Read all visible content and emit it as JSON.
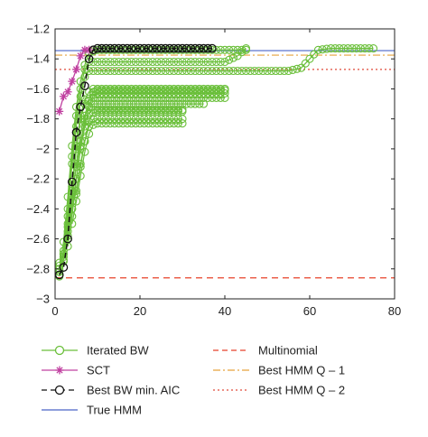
{
  "chart_data": {
    "type": "line",
    "title": "",
    "xlabel": "",
    "ylabel": "",
    "xlim": [
      0,
      80
    ],
    "ylim": [
      -3,
      -1.2
    ],
    "xticks": [
      0,
      20,
      40,
      60,
      80
    ],
    "yticks": [
      -1.2,
      -1.4,
      -1.6,
      -1.8,
      -2,
      -2.2,
      -2.4,
      -2.6,
      -2.8,
      -3
    ],
    "xtick_labels": [
      "0",
      "20",
      "40",
      "60",
      "80"
    ],
    "ytick_labels": [
      "-1.2",
      "-1.4",
      "-1.6",
      "-1.8",
      "-2",
      "-2.2",
      "-2.4",
      "-2.6",
      "-2.8",
      "-3"
    ],
    "grid": false,
    "legend_position": "bottom",
    "legend": [
      {
        "label": "Iterated BW",
        "style": "circle-line",
        "color": "#6abf3a"
      },
      {
        "label": "Multinomial",
        "style": "dashed",
        "color": "#e8422a"
      },
      {
        "label": "SCT",
        "style": "star-line",
        "color": "#c040a0"
      },
      {
        "label": "Best HMM Q – 1",
        "style": "dashdot",
        "color": "#e6a23c"
      },
      {
        "label": "Best BW min. AIC",
        "style": "circle-dashed",
        "color": "#111111"
      },
      {
        "label": "Best HMM Q – 2",
        "style": "dotted",
        "color": "#e04a3a"
      },
      {
        "label": "True HMM",
        "style": "solid",
        "color": "#4a64c8"
      }
    ],
    "reference_lines": [
      {
        "name": "True HMM",
        "y": -1.345,
        "color": "#4a64c8",
        "style": "solid"
      },
      {
        "name": "Best HMM Q – 1",
        "y": -1.375,
        "color": "#e6a23c",
        "style": "dashdot"
      },
      {
        "name": "Best HMM Q – 2",
        "y": -1.47,
        "color": "#e04a3a",
        "style": "dotted"
      },
      {
        "name": "Multinomial",
        "y": -2.86,
        "color": "#e8422a",
        "style": "dashed"
      }
    ],
    "series": [
      {
        "name": "SCT",
        "color": "#c040a0",
        "marker": "star",
        "x": [
          1,
          2,
          3,
          4,
          5,
          6,
          7,
          8
        ],
        "y": [
          -1.75,
          -1.65,
          -1.62,
          -1.55,
          -1.47,
          -1.38,
          -1.34,
          -1.34
        ]
      },
      {
        "name": "Best BW min. AIC",
        "color": "#111111",
        "marker": "circle",
        "x": [
          1,
          2,
          3,
          4,
          5,
          6,
          7,
          8,
          9,
          10,
          11,
          12,
          13,
          14,
          15,
          16,
          17,
          18,
          19,
          20,
          21,
          22,
          23,
          24,
          25,
          26,
          27,
          28,
          29,
          30,
          31,
          32,
          33,
          34,
          35,
          36,
          37
        ],
        "y": [
          -2.84,
          -2.79,
          -2.6,
          -2.22,
          -1.89,
          -1.72,
          -1.58,
          -1.4,
          -1.34,
          -1.33,
          -1.33,
          -1.33,
          -1.33,
          -1.33,
          -1.33,
          -1.33,
          -1.33,
          -1.33,
          -1.33,
          -1.33,
          -1.33,
          -1.33,
          -1.33,
          -1.33,
          -1.33,
          -1.33,
          -1.33,
          -1.33,
          -1.33,
          -1.33,
          -1.33,
          -1.33,
          -1.33,
          -1.33,
          -1.33,
          -1.33,
          -1.33
        ]
      },
      {
        "name": "Iterated BW",
        "color": "#6abf3a",
        "marker": "circle",
        "runs": [
          {
            "x": [
              1,
              2,
              3,
              4,
              5,
              6,
              7,
              8,
              10,
              15,
              20,
              25,
              30,
              35,
              40,
              45,
              50,
              55,
              58,
              60,
              62,
              65,
              70,
              75
            ],
            "y": [
              -2.85,
              -2.72,
              -2.45,
              -2.1,
              -1.85,
              -1.65,
              -1.52,
              -1.48,
              -1.48,
              -1.48,
              -1.48,
              -1.48,
              -1.48,
              -1.48,
              -1.48,
              -1.48,
              -1.48,
              -1.48,
              -1.46,
              -1.4,
              -1.34,
              -1.33,
              -1.33,
              -1.33
            ]
          },
          {
            "x": [
              1,
              2,
              3,
              4,
              5,
              6,
              7,
              8,
              10,
              15,
              20,
              25,
              30,
              35,
              40,
              43,
              45
            ],
            "y": [
              -2.82,
              -2.68,
              -2.4,
              -2.05,
              -1.78,
              -1.6,
              -1.47,
              -1.42,
              -1.42,
              -1.42,
              -1.42,
              -1.42,
              -1.42,
              -1.42,
              -1.42,
              -1.38,
              -1.33
            ]
          },
          {
            "x": [
              1,
              2,
              3,
              4,
              5,
              6,
              7,
              8,
              10,
              15,
              20,
              25,
              30,
              35,
              40,
              45
            ],
            "y": [
              -2.8,
              -2.62,
              -2.32,
              -1.98,
              -1.72,
              -1.55,
              -1.44,
              -1.36,
              -1.34,
              -1.34,
              -1.34,
              -1.34,
              -1.34,
              -1.34,
              -1.34,
              -1.34
            ]
          },
          {
            "x": [
              1,
              2,
              3,
              4,
              5,
              6,
              7,
              8,
              9,
              10,
              15,
              20,
              25,
              30,
              35,
              40
            ],
            "y": [
              -2.78,
              -2.75,
              -2.55,
              -2.28,
              -2.0,
              -1.8,
              -1.7,
              -1.68,
              -1.66,
              -1.66,
              -1.66,
              -1.66,
              -1.66,
              -1.66,
              -1.66,
              -1.66
            ]
          },
          {
            "x": [
              1,
              2,
              3,
              4,
              5,
              6,
              7,
              8,
              9,
              10,
              15,
              20,
              25,
              30,
              35,
              40
            ],
            "y": [
              -2.76,
              -2.7,
              -2.5,
              -2.25,
              -1.98,
              -1.78,
              -1.67,
              -1.62,
              -1.6,
              -1.6,
              -1.6,
              -1.6,
              -1.6,
              -1.6,
              -1.6,
              -1.6
            ]
          },
          {
            "x": [
              2,
              3,
              4,
              5,
              6,
              7,
              8,
              9,
              10,
              15,
              20,
              25,
              30,
              35
            ],
            "y": [
              -2.74,
              -2.6,
              -2.35,
              -2.1,
              -1.9,
              -1.78,
              -1.72,
              -1.7,
              -1.7,
              -1.7,
              -1.7,
              -1.7,
              -1.7,
              -1.7
            ]
          },
          {
            "x": [
              2,
              3,
              4,
              5,
              6,
              7,
              8,
              9,
              10,
              15,
              20,
              25,
              30
            ],
            "y": [
              -2.7,
              -2.52,
              -2.3,
              -2.12,
              -1.95,
              -1.82,
              -1.76,
              -1.74,
              -1.74,
              -1.74,
              -1.74,
              -1.74,
              -1.74
            ]
          },
          {
            "x": [
              3,
              4,
              5,
              6,
              7,
              8,
              9,
              10,
              15,
              20,
              25,
              30,
              35,
              40
            ],
            "y": [
              -2.65,
              -2.45,
              -2.2,
              -2.0,
              -1.85,
              -1.72,
              -1.64,
              -1.63,
              -1.63,
              -1.63,
              -1.63,
              -1.63,
              -1.63,
              -1.63
            ]
          },
          {
            "x": [
              3,
              4,
              5,
              6,
              7,
              8,
              9,
              10,
              15,
              20,
              25,
              30
            ],
            "y": [
              -2.58,
              -2.4,
              -2.28,
              -2.1,
              -1.95,
              -1.85,
              -1.8,
              -1.8,
              -1.8,
              -1.8,
              -1.8,
              -1.8
            ]
          },
          {
            "x": [
              4,
              5,
              6,
              7,
              8,
              9,
              10,
              15,
              20,
              25,
              30
            ],
            "y": [
              -2.5,
              -2.35,
              -2.18,
              -2.02,
              -1.9,
              -1.84,
              -1.83,
              -1.83,
              -1.83,
              -1.83,
              -1.83
            ]
          },
          {
            "x": [
              4,
              5,
              6,
              7,
              8,
              9,
              10,
              15,
              20,
              25,
              30,
              35,
              40
            ],
            "y": [
              -2.4,
              -2.2,
              -1.98,
              -1.8,
              -1.68,
              -1.62,
              -1.61,
              -1.61,
              -1.61,
              -1.61,
              -1.61,
              -1.61,
              -1.61
            ]
          },
          {
            "x": [
              5,
              6,
              7,
              8,
              9,
              10,
              15,
              20,
              25,
              30
            ],
            "y": [
              -2.3,
              -2.12,
              -1.95,
              -1.82,
              -1.76,
              -1.75,
              -1.75,
              -1.75,
              -1.75,
              -1.75
            ]
          }
        ]
      }
    ]
  }
}
